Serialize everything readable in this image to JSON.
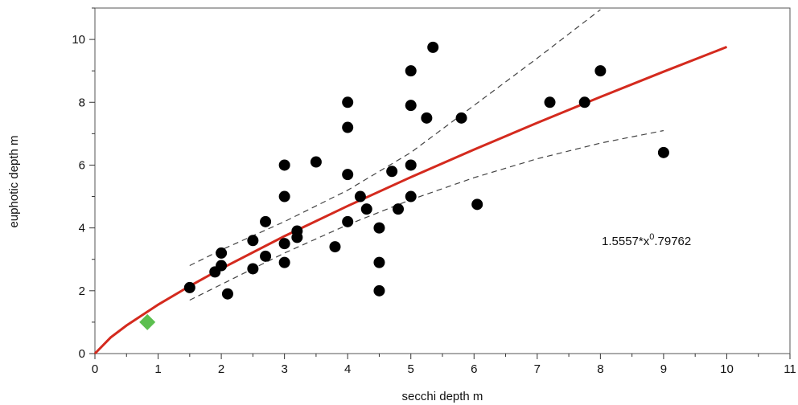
{
  "chart_data": {
    "type": "scatter",
    "x_label": "secchi depth m",
    "y_label": "euphotic  depth m",
    "xlim": [
      0,
      11
    ],
    "ylim": [
      0,
      11
    ],
    "xticks": [
      0,
      1,
      2,
      3,
      4,
      5,
      6,
      7,
      8,
      9,
      10,
      11
    ],
    "yticks": [
      0,
      2,
      4,
      6,
      8,
      10
    ],
    "xminorticks": [
      0.5,
      1.5,
      2.5,
      3.5,
      4.5,
      5.5,
      6.5,
      7.5,
      8.5,
      9.5,
      10.5
    ],
    "yminorticks": [
      1,
      3,
      5,
      7,
      9,
      11
    ],
    "points": {
      "color": "#000000",
      "x": [
        1.5,
        1.9,
        2.0,
        2.0,
        2.1,
        2.5,
        2.5,
        2.7,
        2.7,
        3.0,
        3.0,
        3.0,
        3.0,
        3.2,
        3.2,
        3.5,
        3.8,
        4.0,
        4.0,
        4.0,
        4.0,
        4.2,
        4.3,
        4.5,
        4.5,
        4.5,
        4.7,
        4.8,
        5.0,
        5.0,
        5.0,
        5.0,
        5.25,
        5.35,
        5.8,
        6.05,
        7.2,
        7.75,
        8.0,
        9.0
      ],
      "values": [
        2.1,
        2.6,
        3.2,
        2.8,
        1.9,
        3.6,
        2.7,
        4.2,
        3.1,
        6.0,
        5.0,
        3.5,
        2.9,
        3.9,
        3.7,
        6.1,
        3.4,
        8.0,
        7.2,
        5.7,
        4.2,
        5.0,
        4.6,
        4.0,
        2.9,
        2.0,
        5.8,
        4.6,
        9.0,
        7.9,
        6.0,
        5.0,
        7.5,
        9.75,
        7.5,
        4.75,
        8.0,
        8.0,
        9.0,
        6.4
      ]
    },
    "marker": {
      "color": "#5cbf4f",
      "x": [
        0.83
      ],
      "values": [
        1.0
      ]
    },
    "fit": {
      "color": "#d42a1e",
      "x": [
        0,
        0.25,
        0.5,
        1,
        1.5,
        2,
        3,
        4,
        5,
        6,
        7,
        8,
        9,
        10
      ],
      "values": [
        0,
        0.515,
        0.895,
        1.556,
        2.15,
        2.704,
        3.737,
        4.7,
        5.616,
        6.495,
        7.345,
        8.17,
        8.975,
        9.762
      ]
    },
    "band_upper": {
      "x": [
        1.5,
        2,
        3,
        4,
        5,
        6,
        7,
        8
      ],
      "values": [
        2.8,
        3.3,
        4.2,
        5.2,
        6.4,
        7.9,
        9.4,
        10.95
      ]
    },
    "band_lower": {
      "x": [
        1.5,
        2,
        3,
        4,
        5,
        6,
        7,
        8,
        9
      ],
      "values": [
        1.7,
        2.2,
        3.2,
        4.1,
        4.9,
        5.6,
        6.2,
        6.7,
        7.1
      ]
    },
    "annotation": {
      "text": "1.5557*x",
      "sup": "0",
      "rest": ".79762"
    }
  }
}
